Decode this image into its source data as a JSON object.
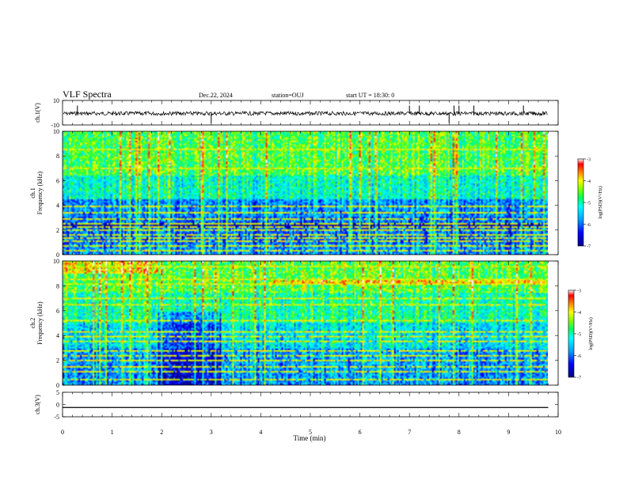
{
  "header": {
    "title": "VLF Spectra",
    "date": "Dec.22, 2024",
    "station": "station=OUJ",
    "start": "start UT =  18:30: 0"
  },
  "chart_data": [
    {
      "type": "line",
      "panel": "ch1-waveform",
      "ylabel": "ch.1(V)",
      "ylim": [
        -10,
        10
      ],
      "yticks": [
        "10",
        "-10"
      ],
      "xlim": [
        0,
        10
      ],
      "series": [
        {
          "x": [
            0,
            1,
            2,
            3,
            4,
            5,
            6,
            7,
            8,
            9,
            9.8
          ],
          "y": [
            0,
            0,
            0,
            0,
            0,
            0,
            0,
            0,
            0,
            0,
            0
          ]
        }
      ],
      "spikes_min": [
        0.3,
        3.0,
        7.0,
        7.2,
        7.8,
        7.9,
        8.0,
        8.3,
        9.3
      ]
    },
    {
      "type": "heatmap",
      "panel": "ch1-spectrogram",
      "ylabel": "ch.1\nFrequency (kHz)",
      "ylim": [
        0,
        10
      ],
      "yticks": [
        "0",
        "2",
        "4",
        "6",
        "8",
        "10"
      ],
      "xlim": [
        0,
        10
      ],
      "colorbar": {
        "label": "log(PSD)(V²/Hz)",
        "ticks": [
          "-3",
          "-4",
          "-5",
          "-6",
          "-7"
        ],
        "range": [
          -7,
          -3
        ]
      },
      "horizontal_lines_khz": [
        0.4,
        0.8,
        1.1,
        1.4,
        1.7,
        2.0,
        2.3,
        2.6,
        3.0,
        3.4,
        4.0,
        7.0,
        8.6
      ]
    },
    {
      "type": "heatmap",
      "panel": "ch2-spectrogram",
      "ylabel": "ch.2\nFrequency (kHz)",
      "ylim": [
        0,
        10
      ],
      "yticks": [
        "0",
        "2",
        "4",
        "6",
        "8",
        "10"
      ],
      "xlim": [
        0,
        10
      ],
      "colorbar": {
        "label": "log(PSD)(V²/Hz)",
        "ticks": [
          "-3",
          "-4",
          "-5",
          "-6",
          "-7"
        ],
        "range": [
          -7,
          -3
        ]
      },
      "horizontal_lines_khz": [
        0.5,
        1.2,
        1.6,
        2.0,
        2.4,
        2.8,
        3.6,
        4.0,
        4.4,
        5.2,
        6.6,
        7.0,
        8.2,
        8.6,
        9.6
      ]
    },
    {
      "type": "line",
      "panel": "ch3-waveform",
      "ylabel": "ch.3(V)",
      "ylim": [
        -5,
        5
      ],
      "yticks": [
        "5",
        "0",
        "-5"
      ],
      "xlim": [
        0,
        10
      ],
      "series": [
        {
          "x": [
            0,
            9.8
          ],
          "y": [
            -1.2,
            -1.2
          ]
        }
      ]
    }
  ],
  "xaxis": {
    "label": "Time (min)",
    "ticks": [
      "0",
      "1",
      "2",
      "3",
      "4",
      "5",
      "6",
      "7",
      "8",
      "9",
      "10"
    ]
  },
  "colors": {
    "colormap": [
      "#000080",
      "#0000ff",
      "#00a0ff",
      "#00ffff",
      "#00ff80",
      "#80ff00",
      "#ffff00",
      "#ff8000",
      "#ff0000",
      "#ffffff"
    ]
  }
}
